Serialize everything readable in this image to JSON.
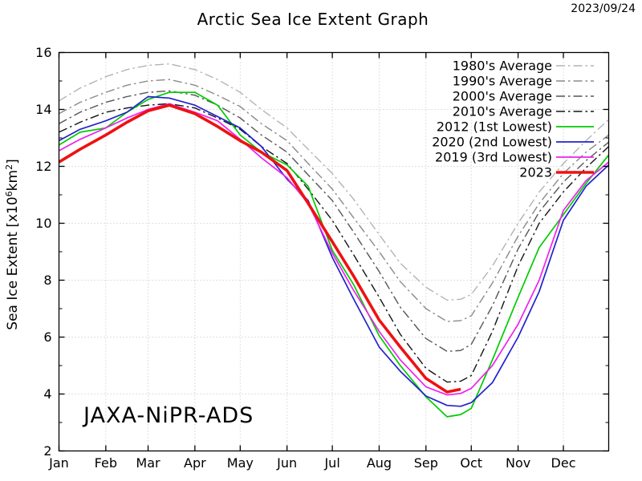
{
  "header": {
    "title": "Arctic Sea Ice Extent Graph",
    "date": "2023/09/24"
  },
  "watermark": "JAXA-NiPR-ADS",
  "y_axis_title_parts": {
    "pre": "Sea Ice Extent [x10",
    "sup1": "6",
    "mid": "km",
    "sup2": "2",
    "post": "]"
  },
  "chart_data": {
    "type": "line",
    "title": "Arctic Sea Ice Extent Graph",
    "xlabel": "",
    "ylabel": "Sea Ice Extent [x10^6 km^2]",
    "x_unit": "day_of_year",
    "xlim_days": [
      1,
      365
    ],
    "ylim": [
      2,
      16
    ],
    "grid": "dotted at month starts and even extents",
    "legend_position": "top-right-inside",
    "x_ticks_months": [
      {
        "label": "Jan",
        "day": 1
      },
      {
        "label": "Feb",
        "day": 32
      },
      {
        "label": "Mar",
        "day": 60
      },
      {
        "label": "Apr",
        "day": 91
      },
      {
        "label": "May",
        "day": 121
      },
      {
        "label": "Jun",
        "day": 152
      },
      {
        "label": "Jul",
        "day": 182
      },
      {
        "label": "Aug",
        "day": 213
      },
      {
        "label": "Sep",
        "day": 244
      },
      {
        "label": "Oct",
        "day": 274
      },
      {
        "label": "Nov",
        "day": 305
      },
      {
        "label": "Dec",
        "day": 335
      }
    ],
    "y_ticks_major": [
      2,
      4,
      6,
      8,
      10,
      12,
      14,
      16
    ],
    "y_ticks_minor": [
      3,
      5,
      7,
      9,
      11,
      13,
      15
    ],
    "sample_days": [
      1,
      15,
      32,
      46,
      60,
      74,
      91,
      106,
      121,
      135,
      152,
      166,
      182,
      196,
      213,
      227,
      244,
      258,
      267,
      274,
      288,
      305,
      319,
      335,
      350,
      365
    ],
    "series": [
      {
        "name": "1980s-average",
        "label": "1980's Average",
        "color": "#b4b4b4",
        "style": "dashdot",
        "width": 1.4,
        "values": [
          14.3,
          14.75,
          15.15,
          15.4,
          15.55,
          15.6,
          15.4,
          15.05,
          14.6,
          14.0,
          13.35,
          12.6,
          11.75,
          10.85,
          9.6,
          8.6,
          7.75,
          7.3,
          7.33,
          7.5,
          8.5,
          10.0,
          11.1,
          12.1,
          12.9,
          13.65
        ]
      },
      {
        "name": "1990s-average",
        "label": "1990's Average",
        "color": "#8a8a8a",
        "style": "dashdot",
        "width": 1.4,
        "values": [
          13.85,
          14.25,
          14.6,
          14.85,
          15.0,
          15.05,
          14.85,
          14.5,
          14.1,
          13.5,
          12.9,
          12.1,
          11.2,
          10.2,
          9.0,
          7.95,
          7.0,
          6.55,
          6.58,
          6.75,
          7.9,
          9.55,
          10.7,
          11.75,
          12.5,
          13.1
        ]
      },
      {
        "name": "2000s-average",
        "label": "2000's Average",
        "color": "#555555",
        "style": "dashdot",
        "width": 1.4,
        "values": [
          13.5,
          13.9,
          14.25,
          14.45,
          14.6,
          14.65,
          14.5,
          14.15,
          13.7,
          13.1,
          12.5,
          11.7,
          10.8,
          9.7,
          8.3,
          7.05,
          5.95,
          5.5,
          5.53,
          5.75,
          7.1,
          9.1,
          10.4,
          11.45,
          12.2,
          12.85
        ]
      },
      {
        "name": "2010s-average",
        "label": "2010's Average",
        "color": "#141414",
        "style": "dashdot",
        "width": 1.4,
        "values": [
          13.2,
          13.55,
          13.9,
          14.05,
          14.15,
          14.2,
          14.05,
          13.7,
          13.3,
          12.7,
          12.1,
          11.2,
          10.1,
          8.9,
          7.4,
          6.1,
          4.9,
          4.42,
          4.45,
          4.65,
          6.2,
          8.5,
          10.0,
          11.1,
          11.95,
          12.7
        ]
      },
      {
        "name": "2012",
        "label": "2012 (1st Lowest)",
        "color": "#00cc00",
        "style": "solid",
        "width": 1.7,
        "values": [
          12.75,
          13.2,
          13.35,
          13.9,
          14.35,
          14.6,
          14.6,
          14.15,
          13.1,
          12.5,
          12.05,
          11.3,
          9.05,
          7.85,
          6.05,
          5.0,
          3.9,
          3.2,
          3.28,
          3.5,
          5.2,
          7.4,
          9.15,
          10.3,
          11.4,
          12.4
        ]
      },
      {
        "name": "2020",
        "label": "2020 (2nd Lowest)",
        "color": "#2222cc",
        "style": "solid",
        "width": 1.7,
        "values": [
          12.9,
          13.3,
          13.6,
          13.9,
          14.45,
          14.4,
          14.15,
          13.75,
          13.35,
          12.7,
          11.55,
          10.8,
          8.8,
          7.35,
          5.65,
          4.8,
          3.93,
          3.6,
          3.57,
          3.7,
          4.4,
          6.0,
          7.6,
          10.1,
          11.3,
          12.05
        ]
      },
      {
        "name": "2019",
        "label": "2019 (3rd Lowest)",
        "color": "#ee22ee",
        "style": "solid",
        "width": 1.7,
        "values": [
          12.55,
          12.95,
          13.35,
          13.7,
          14.0,
          14.2,
          13.9,
          13.6,
          12.95,
          12.3,
          11.6,
          10.7,
          8.95,
          7.65,
          6.2,
          5.2,
          4.25,
          3.97,
          4.02,
          4.2,
          5.0,
          6.45,
          8.0,
          10.45,
          11.5,
          12.15
        ]
      },
      {
        "name": "2023",
        "label": "2023",
        "color": "#ee1111",
        "style": "solid",
        "width": 3.6,
        "values": [
          12.15,
          12.6,
          13.1,
          13.55,
          13.95,
          14.15,
          13.85,
          13.4,
          12.9,
          12.5,
          11.85,
          10.7,
          9.35,
          8.15,
          6.6,
          5.65,
          4.55,
          4.07,
          4.17
        ]
      }
    ]
  }
}
